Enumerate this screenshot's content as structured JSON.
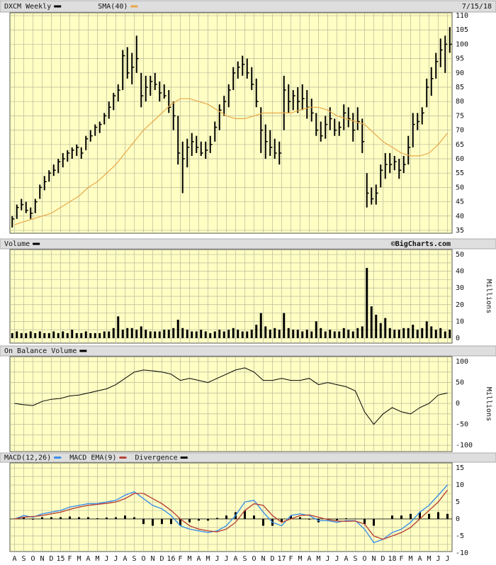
{
  "chart_data": [
    {
      "type": "ohlc",
      "title": "DXCM Weekly",
      "date": "7/15/18",
      "color": "#000000",
      "x": [
        -0.25,
        0.25,
        0.75,
        1.25,
        1.75,
        2.25,
        2.75,
        3.25,
        3.75,
        4.25,
        4.75,
        5.25,
        5.75,
        6.25,
        6.75,
        7.25,
        7.75,
        8.25,
        8.75,
        9.25,
        9.75,
        10.25,
        10.75,
        11.25,
        11.75,
        12.25,
        12.75,
        13.25,
        13.75,
        14.25,
        14.75,
        15.25,
        15.75,
        16.25,
        16.75,
        17.25,
        17.75,
        18.25,
        18.75,
        19.25,
        19.75,
        20.25,
        20.75,
        21.25,
        21.75,
        22.25,
        22.75,
        23.25,
        23.75,
        24.25,
        24.75,
        25.25,
        25.75,
        26.25,
        26.75,
        27.25,
        27.75,
        28.25,
        28.75,
        29.25,
        29.75,
        30.25,
        30.75,
        31.25,
        31.75,
        32.25,
        32.75,
        33.25,
        33.75,
        34.25,
        34.75,
        35.25,
        35.75,
        36.25,
        36.75,
        37.25,
        37.75,
        38.25,
        38.75,
        39.25,
        39.75,
        40.25,
        40.75,
        41.25,
        41.75,
        42.25,
        42.75,
        43.25,
        43.75,
        44.25,
        44.75,
        45.25,
        45.75,
        46.25,
        46.75,
        47.25
      ],
      "high": [
        40,
        44,
        46,
        45,
        43,
        46,
        51,
        54,
        56,
        58,
        60,
        62,
        63,
        64,
        65,
        64,
        68,
        70,
        72,
        73,
        76,
        80,
        83,
        86,
        98,
        99,
        97,
        103,
        90,
        89,
        89,
        90,
        87,
        86,
        84,
        80,
        75,
        66,
        67,
        69,
        68,
        66,
        66,
        68,
        73,
        79,
        82,
        86,
        92,
        94,
        96,
        95,
        92,
        88,
        78,
        72,
        70,
        67,
        66,
        89,
        86,
        84,
        85,
        86,
        84,
        81,
        76,
        73,
        75,
        78,
        74,
        73,
        79,
        78,
        76,
        78,
        74,
        55,
        50,
        51,
        58,
        62,
        62,
        61,
        60,
        61,
        68,
        76,
        76,
        78,
        88,
        92,
        97,
        102,
        103,
        106
      ],
      "low": [
        36,
        39,
        42,
        41,
        39,
        41,
        46,
        49,
        52,
        54,
        55,
        57,
        59,
        60,
        61,
        60,
        63,
        66,
        68,
        69,
        72,
        74,
        77,
        80,
        84,
        88,
        86,
        90,
        78,
        80,
        82,
        84,
        80,
        81,
        76,
        70,
        58,
        48,
        57,
        61,
        62,
        61,
        60,
        62,
        66,
        70,
        75,
        78,
        84,
        88,
        89,
        88,
        84,
        78,
        62,
        60,
        61,
        60,
        58,
        70,
        76,
        77,
        76,
        77,
        74,
        73,
        68,
        66,
        67,
        70,
        68,
        68,
        70,
        71,
        66,
        70,
        62,
        43,
        44,
        44,
        50,
        53,
        55,
        56,
        53,
        55,
        58,
        64,
        70,
        72,
        78,
        82,
        88,
        92,
        90,
        97
      ],
      "close": [
        39,
        43,
        44,
        42,
        41,
        45,
        50,
        52,
        55,
        56,
        59,
        60,
        62,
        63,
        64,
        62,
        67,
        68,
        71,
        72,
        75,
        78,
        82,
        84,
        96,
        90,
        92,
        95,
        82,
        85,
        87,
        86,
        83,
        82,
        78,
        75,
        62,
        60,
        64,
        66,
        64,
        62,
        63,
        65,
        71,
        77,
        80,
        84,
        90,
        92,
        93,
        90,
        86,
        80,
        70,
        66,
        64,
        62,
        62,
        84,
        80,
        82,
        80,
        81,
        78,
        76,
        70,
        68,
        72,
        74,
        70,
        71,
        76,
        74,
        70,
        73,
        66,
        48,
        46,
        48,
        56,
        58,
        58,
        59,
        56,
        58,
        64,
        72,
        73,
        76,
        85,
        88,
        94,
        98,
        100,
        100
      ],
      "overlay": {
        "name": "SMA(40)",
        "color": "#e8a848",
        "x": [
          0,
          1,
          2,
          3,
          4,
          5,
          6,
          7,
          8,
          9,
          10,
          11,
          12,
          13,
          14,
          15,
          16,
          17,
          18,
          19,
          20,
          21,
          22,
          23,
          24,
          25,
          26,
          27,
          28,
          29,
          30,
          31,
          32,
          33,
          34,
          35,
          36,
          37,
          38,
          39,
          40,
          41,
          42,
          43,
          44,
          45,
          46,
          47
        ],
        "values": [
          37,
          38,
          39,
          40,
          41,
          43,
          45,
          47,
          50,
          52,
          55,
          58,
          62,
          66,
          70,
          73,
          76,
          79,
          81,
          81,
          80,
          79,
          77,
          75,
          74,
          74,
          75,
          76,
          76,
          76,
          76,
          77,
          78,
          78,
          77,
          75,
          74,
          73,
          72,
          69,
          66,
          64,
          62,
          61,
          61,
          62,
          65,
          69
        ]
      },
      "xlim": [
        -0.5,
        47.5
      ],
      "ylim": [
        34,
        111
      ],
      "yticks": [
        35,
        40,
        45,
        50,
        55,
        60,
        65,
        70,
        75,
        80,
        85,
        90,
        95,
        100,
        105,
        110
      ]
    },
    {
      "type": "bar",
      "title": "Volume",
      "source": "©BigCharts.com",
      "y_label": "Millions",
      "color": "#000000",
      "x": [
        -0.25,
        0.25,
        0.75,
        1.25,
        1.75,
        2.25,
        2.75,
        3.25,
        3.75,
        4.25,
        4.75,
        5.25,
        5.75,
        6.25,
        6.75,
        7.25,
        7.75,
        8.25,
        8.75,
        9.25,
        9.75,
        10.25,
        10.75,
        11.25,
        11.75,
        12.25,
        12.75,
        13.25,
        13.75,
        14.25,
        14.75,
        15.25,
        15.75,
        16.25,
        16.75,
        17.25,
        17.75,
        18.25,
        18.75,
        19.25,
        19.75,
        20.25,
        20.75,
        21.25,
        21.75,
        22.25,
        22.75,
        23.25,
        23.75,
        24.25,
        24.75,
        25.25,
        25.75,
        26.25,
        26.75,
        27.25,
        27.75,
        28.25,
        28.75,
        29.25,
        29.75,
        30.25,
        30.75,
        31.25,
        31.75,
        32.25,
        32.75,
        33.25,
        33.75,
        34.25,
        34.75,
        35.25,
        35.75,
        36.25,
        36.75,
        37.25,
        37.75,
        38.25,
        38.75,
        39.25,
        39.75,
        40.25,
        40.75,
        41.25,
        41.75,
        42.25,
        42.75,
        43.25,
        43.75,
        44.25,
        44.75,
        45.25,
        45.75,
        46.25,
        46.75,
        47.25
      ],
      "values": [
        3,
        4,
        3,
        3,
        4,
        3,
        4,
        3,
        3,
        4,
        3,
        4,
        3,
        5,
        3,
        3,
        4,
        3,
        3,
        3,
        4,
        4,
        6,
        13,
        5,
        6,
        6,
        5,
        7,
        5,
        4,
        4,
        4,
        5,
        5,
        6,
        11,
        6,
        5,
        4,
        4,
        5,
        4,
        3,
        4,
        5,
        4,
        5,
        6,
        5,
        4,
        4,
        5,
        8,
        15,
        7,
        5,
        6,
        5,
        15,
        6,
        5,
        5,
        4,
        5,
        4,
        10,
        6,
        4,
        5,
        4,
        4,
        6,
        5,
        4,
        6,
        7,
        42,
        19,
        14,
        9,
        12,
        6,
        5,
        5,
        6,
        6,
        8,
        5,
        6,
        10,
        7,
        5,
        6,
        4,
        5
      ],
      "xlim": [
        -0.5,
        47.5
      ],
      "ylim": [
        -3,
        53
      ],
      "yticks": [
        0,
        10,
        20,
        30,
        40,
        50
      ],
      "ygrid": [
        0,
        5,
        10,
        15,
        20,
        25,
        30,
        35,
        40,
        45,
        50
      ]
    },
    {
      "type": "line",
      "title": "On Balance Volume",
      "y_label": "Millions",
      "color": "#000000",
      "x": [
        0,
        1,
        2,
        3,
        4,
        5,
        6,
        7,
        8,
        9,
        10,
        11,
        12,
        13,
        14,
        15,
        16,
        17,
        18,
        19,
        20,
        21,
        22,
        23,
        24,
        25,
        26,
        27,
        28,
        29,
        30,
        31,
        32,
        33,
        34,
        35,
        36,
        37,
        38,
        39,
        40,
        41,
        42,
        43,
        44,
        45,
        46,
        47
      ],
      "values": [
        0,
        -3,
        -5,
        5,
        10,
        12,
        18,
        20,
        25,
        30,
        35,
        45,
        60,
        75,
        80,
        78,
        75,
        70,
        55,
        60,
        55,
        50,
        60,
        70,
        80,
        85,
        75,
        55,
        55,
        60,
        55,
        55,
        60,
        45,
        50,
        45,
        40,
        30,
        -20,
        -50,
        -25,
        -10,
        -20,
        -25,
        -10,
        0,
        20,
        25
      ],
      "xlim": [
        -0.5,
        47.5
      ],
      "ylim": [
        -115,
        112
      ],
      "yticks": [
        -100,
        -50,
        0,
        50,
        100
      ],
      "ygrid": [
        -100,
        -75,
        -50,
        -25,
        0,
        25,
        50,
        75,
        100
      ]
    },
    {
      "type": "macd",
      "x": [
        0,
        1,
        2,
        3,
        4,
        5,
        6,
        7,
        8,
        9,
        10,
        11,
        12,
        13,
        14,
        15,
        16,
        17,
        18,
        19,
        20,
        21,
        22,
        23,
        24,
        25,
        26,
        27,
        28,
        29,
        30,
        31,
        32,
        33,
        34,
        35,
        36,
        37,
        38,
        39,
        40,
        41,
        42,
        43,
        44,
        45,
        46,
        47
      ],
      "series": [
        {
          "name": "MACD(12,26)",
          "color": "#3b8fe8",
          "values": [
            0,
            1,
            0.5,
            1.5,
            2,
            2.5,
            3.5,
            4,
            4.5,
            4.5,
            5,
            5.5,
            7,
            8,
            6,
            4,
            3,
            1,
            -2,
            -3,
            -3.5,
            -4,
            -3.5,
            -2,
            1,
            5,
            5.5,
            2,
            -1,
            -2,
            1,
            1.5,
            1,
            -0.5,
            -0.5,
            -1,
            -0.5,
            -0.5,
            -3,
            -7,
            -6,
            -4,
            -3,
            -1,
            2,
            4,
            7,
            10
          ]
        },
        {
          "name": "MACD EMA(9)",
          "color": "#b8433a",
          "values": [
            0,
            0.5,
            0.7,
            1,
            1.5,
            2,
            2.8,
            3.5,
            4,
            4.3,
            4.6,
            5,
            6,
            7.5,
            7.5,
            6,
            4.5,
            2.5,
            0,
            -2,
            -3,
            -3.5,
            -3.8,
            -3,
            -1,
            2.5,
            4.5,
            4,
            1,
            -1,
            0,
            1,
            1.2,
            0.5,
            -0.2,
            -0.6,
            -0.7,
            -0.6,
            -1.5,
            -5,
            -6,
            -5,
            -4,
            -2.5,
            0,
            2.5,
            5,
            8.5
          ]
        },
        {
          "name": "Divergence",
          "color": "#000000",
          "style": "bar",
          "values": [
            0,
            0.5,
            -0.2,
            0.5,
            0.5,
            0.5,
            0.7,
            0.5,
            0.5,
            0.2,
            0.4,
            0.5,
            1,
            0.5,
            -1.5,
            -2,
            -1.5,
            -1.5,
            -2,
            -1,
            -0.5,
            -0.5,
            0.3,
            1,
            2,
            2.5,
            1,
            -2,
            -2,
            -1,
            1,
            0.5,
            -0.2,
            -1,
            -0.3,
            -0.4,
            0.2,
            0.1,
            -1.5,
            -2,
            0,
            1,
            1,
            1.5,
            2,
            1.5,
            2,
            1.5
          ]
        }
      ],
      "xlim": [
        -0.5,
        47.5
      ],
      "ylim": [
        -9.6,
        16.5
      ],
      "yticks": [
        -10,
        -5,
        0,
        5,
        10,
        15
      ],
      "ygrid": [
        -7.5,
        -5,
        -2.5,
        0,
        2.5,
        5,
        7.5,
        10,
        12.5,
        15
      ],
      "xticks": [
        {
          "value": 0,
          "label": "A"
        },
        {
          "value": 1,
          "label": "S"
        },
        {
          "value": 2,
          "label": "O"
        },
        {
          "value": 3,
          "label": "N"
        },
        {
          "value": 4,
          "label": "D"
        },
        {
          "value": 5,
          "label": "15"
        },
        {
          "value": 6,
          "label": "F"
        },
        {
          "value": 7,
          "label": "M"
        },
        {
          "value": 8,
          "label": "A"
        },
        {
          "value": 9,
          "label": "M"
        },
        {
          "value": 10,
          "label": "J"
        },
        {
          "value": 11,
          "label": "J"
        },
        {
          "value": 12,
          "label": "A"
        },
        {
          "value": 13,
          "label": "S"
        },
        {
          "value": 14,
          "label": "O"
        },
        {
          "value": 15,
          "label": "N"
        },
        {
          "value": 16,
          "label": "D"
        },
        {
          "value": 17,
          "label": "16"
        },
        {
          "value": 18,
          "label": "F"
        },
        {
          "value": 19,
          "label": "M"
        },
        {
          "value": 20,
          "label": "A"
        },
        {
          "value": 21,
          "label": "M"
        },
        {
          "value": 22,
          "label": "J"
        },
        {
          "value": 23,
          "label": "J"
        },
        {
          "value": 24,
          "label": "A"
        },
        {
          "value": 25,
          "label": "S"
        },
        {
          "value": 26,
          "label": "O"
        },
        {
          "value": 27,
          "label": "N"
        },
        {
          "value": 28,
          "label": "D"
        },
        {
          "value": 29,
          "label": "17"
        },
        {
          "value": 30,
          "label": "F"
        },
        {
          "value": 31,
          "label": "M"
        },
        {
          "value": 32,
          "label": "A"
        },
        {
          "value": 33,
          "label": "M"
        },
        {
          "value": 34,
          "label": "J"
        },
        {
          "value": 35,
          "label": "J"
        },
        {
          "value": 36,
          "label": "A"
        },
        {
          "value": 37,
          "label": "S"
        },
        {
          "value": 38,
          "label": "O"
        },
        {
          "value": 39,
          "label": "N"
        },
        {
          "value": 40,
          "label": "D"
        },
        {
          "value": 41,
          "label": "18"
        },
        {
          "value": 42,
          "label": "F"
        },
        {
          "value": 43,
          "label": "M"
        },
        {
          "value": 44,
          "label": "A"
        },
        {
          "value": 45,
          "label": "M"
        },
        {
          "value": 46,
          "label": "J"
        },
        {
          "value": 47,
          "label": "J"
        }
      ]
    }
  ]
}
